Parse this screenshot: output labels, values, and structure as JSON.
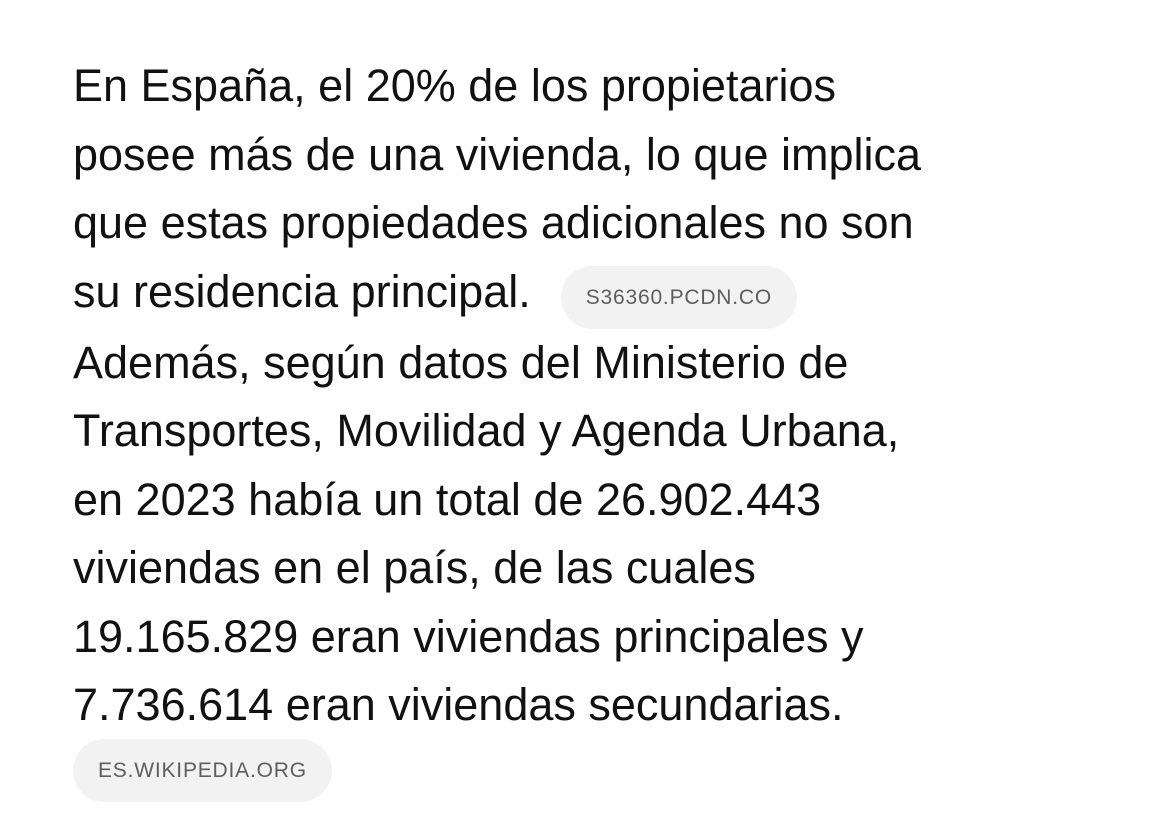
{
  "paragraph1": {
    "lines": [
      "En España, el 20% de los propietarios",
      "posee más de una vivienda, lo que implica",
      "que estas propiedades adicionales no son",
      "su residencia principal."
    ],
    "source": "S36360.PCDN.CO"
  },
  "paragraph2": {
    "lines": [
      "Además, según datos del Ministerio de",
      "Transportes, Movilidad y Agenda Urbana,",
      "en 2023 había un total de 26.902.443",
      "viviendas en el país, de las cuales",
      "19.165.829 eran viviendas principales y",
      "7.736.614 eran viviendas secundarias."
    ],
    "source": "ES.WIKIPEDIA.ORG"
  },
  "colors": {
    "text": "#111111",
    "chip_background": "#f2f2f2",
    "chip_text": "#5e5e5e",
    "background": "#ffffff"
  }
}
